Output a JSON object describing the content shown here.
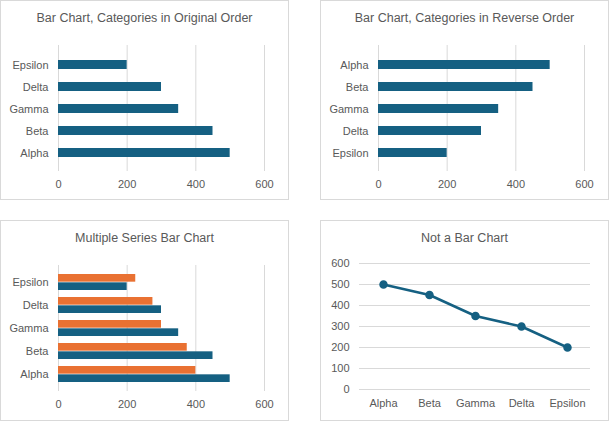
{
  "chart_data": [
    {
      "type": "bar",
      "title": "Bar Chart, Categories in Original Order",
      "orientation": "horizontal",
      "categories": [
        "Epsilon",
        "Delta",
        "Gamma",
        "Beta",
        "Alpha"
      ],
      "values": [
        200,
        300,
        350,
        450,
        500
      ],
      "color": "#156082",
      "xlim": [
        0,
        600
      ],
      "xticks": [
        0,
        200,
        400,
        600
      ],
      "grid": true
    },
    {
      "type": "bar",
      "title": "Bar Chart, Categories in Reverse Order",
      "orientation": "horizontal",
      "categories": [
        "Alpha",
        "Beta",
        "Gamma",
        "Delta",
        "Epsilon"
      ],
      "values": [
        500,
        450,
        350,
        300,
        200
      ],
      "color": "#156082",
      "xlim": [
        0,
        600
      ],
      "xticks": [
        0,
        200,
        400,
        600
      ],
      "grid": true
    },
    {
      "type": "bar",
      "title": "Multiple Series Bar Chart",
      "orientation": "horizontal",
      "categories": [
        "Epsilon",
        "Delta",
        "Gamma",
        "Beta",
        "Alpha"
      ],
      "series": [
        {
          "color": "#156082",
          "values": [
            200,
            300,
            350,
            450,
            500
          ]
        },
        {
          "color": "#E97132",
          "values": [
            225,
            275,
            300,
            375,
            400
          ]
        }
      ],
      "xlim": [
        0,
        600
      ],
      "xticks": [
        0,
        200,
        400,
        600
      ],
      "grid": true
    },
    {
      "type": "line",
      "title": "Not a Bar Chart",
      "categories": [
        "Alpha",
        "Beta",
        "Gamma",
        "Delta",
        "Epsilon"
      ],
      "values": [
        500,
        450,
        350,
        300,
        200
      ],
      "color": "#156082",
      "marker": "circle",
      "ylim": [
        0,
        600
      ],
      "yticks": [
        0,
        100,
        200,
        300,
        400,
        500,
        600
      ],
      "grid": true
    }
  ]
}
